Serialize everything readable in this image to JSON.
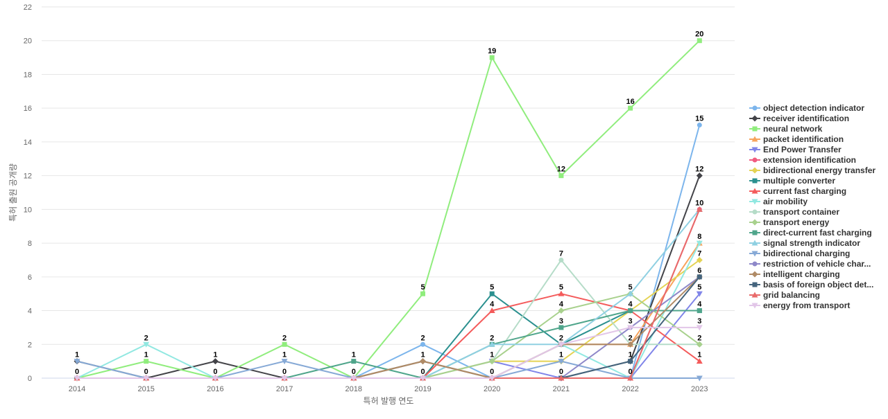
{
  "chart_data": {
    "type": "line",
    "xlabel": "특허 발행 연도",
    "ylabel": "특허 출원 공개량",
    "ylim": [
      0,
      22
    ],
    "yticks": [
      0,
      2,
      4,
      6,
      8,
      10,
      12,
      14,
      16,
      18,
      20,
      22
    ],
    "categories": [
      "2014",
      "2015",
      "2016",
      "2017",
      "2018",
      "2019",
      "2020",
      "2021",
      "2022",
      "2023"
    ],
    "grid": true,
    "legend_position": "right",
    "data_labels_for_series": "neural network",
    "series": [
      {
        "name": "object detection indicator",
        "color": "#7cb5ec",
        "marker": "circle",
        "values": [
          0,
          0,
          0,
          0,
          0,
          2,
          0,
          0,
          0,
          15
        ]
      },
      {
        "name": "receiver identification",
        "color": "#434348",
        "marker": "diamond",
        "values": [
          1,
          0,
          1,
          0,
          0,
          1,
          0,
          0,
          1,
          12
        ]
      },
      {
        "name": "neural network",
        "color": "#90ed7d",
        "marker": "square",
        "values": [
          0,
          1,
          0,
          2,
          0,
          5,
          19,
          12,
          16,
          20
        ]
      },
      {
        "name": "packet identification",
        "color": "#f7a35c",
        "marker": "triangle",
        "values": [
          0,
          0,
          0,
          0,
          0,
          0,
          0,
          2,
          2,
          8
        ]
      },
      {
        "name": "End Power Transfer",
        "color": "#8085e9",
        "marker": "triangle-down",
        "values": [
          0,
          0,
          0,
          0,
          0,
          0,
          1,
          0,
          0,
          5
        ]
      },
      {
        "name": "extension identification",
        "color": "#f15c80",
        "marker": "circle",
        "values": [
          0,
          0,
          0,
          0,
          0,
          0,
          0,
          0,
          0,
          10
        ]
      },
      {
        "name": "bidirectional energy transfer",
        "color": "#e4d354",
        "marker": "diamond",
        "values": [
          0,
          0,
          0,
          0,
          0,
          0,
          1,
          1,
          4,
          7
        ]
      },
      {
        "name": "multiple converter",
        "color": "#2b908f",
        "marker": "square",
        "values": [
          0,
          0,
          0,
          0,
          0,
          0,
          5,
          2,
          4,
          4
        ]
      },
      {
        "name": "current fast charging",
        "color": "#f45b5b",
        "marker": "triangle",
        "values": [
          0,
          0,
          0,
          0,
          0,
          0,
          4,
          5,
          4,
          1
        ]
      },
      {
        "name": "air mobility",
        "color": "#91e8e1",
        "marker": "triangle-down",
        "values": [
          0,
          2,
          0,
          0,
          0,
          0,
          0,
          2,
          0,
          8
        ]
      },
      {
        "name": "transport container",
        "color": "#b5dcc8",
        "marker": "circle",
        "values": [
          0,
          0,
          0,
          0,
          0,
          0,
          1,
          7,
          2,
          2
        ]
      },
      {
        "name": "transport energy",
        "color": "#a8d18d",
        "marker": "diamond",
        "values": [
          0,
          0,
          0,
          0,
          0,
          0,
          1,
          4,
          5,
          2
        ]
      },
      {
        "name": "direct-current fast charging",
        "color": "#4fa58b",
        "marker": "square",
        "values": [
          0,
          0,
          0,
          0,
          1,
          0,
          2,
          3,
          4,
          4
        ]
      },
      {
        "name": "signal strength indicator",
        "color": "#8fd0e2",
        "marker": "triangle",
        "values": [
          0,
          0,
          0,
          0,
          0,
          0,
          2,
          2,
          5,
          10
        ]
      },
      {
        "name": "bidirectional charging",
        "color": "#86a9d6",
        "marker": "triangle-down",
        "values": [
          1,
          0,
          0,
          1,
          0,
          0,
          0,
          1,
          0,
          0
        ]
      },
      {
        "name": "restriction of vehicle char...",
        "color": "#8e88c9",
        "marker": "circle",
        "values": [
          0,
          0,
          0,
          0,
          0,
          0,
          0,
          0,
          3,
          6
        ]
      },
      {
        "name": "intelligent charging",
        "color": "#b08b66",
        "marker": "diamond",
        "values": [
          0,
          0,
          0,
          0,
          0,
          1,
          0,
          2,
          2,
          6
        ]
      },
      {
        "name": "basis of foreign object det...",
        "color": "#44647d",
        "marker": "square",
        "values": [
          0,
          0,
          0,
          0,
          0,
          0,
          0,
          0,
          1,
          6
        ]
      },
      {
        "name": "grid balancing",
        "color": "#e86a6a",
        "marker": "triangle",
        "values": [
          0,
          0,
          0,
          0,
          0,
          0,
          0,
          0,
          0,
          10
        ]
      },
      {
        "name": "energy from transport",
        "color": "#e2c6e8",
        "marker": "triangle-down",
        "values": [
          0,
          0,
          0,
          0,
          0,
          0,
          0,
          2,
          3,
          3
        ]
      }
    ],
    "annotations": [
      {
        "x": "2014",
        "labels": [
          "1",
          "0"
        ]
      },
      {
        "x": "2015",
        "labels": [
          "2",
          "1",
          "0"
        ]
      },
      {
        "x": "2016",
        "labels": [
          "1",
          "0"
        ]
      },
      {
        "x": "2017",
        "labels": [
          "2",
          "1",
          "0"
        ]
      },
      {
        "x": "2018",
        "labels": [
          "1",
          "0"
        ]
      },
      {
        "x": "2019",
        "labels": [
          "5",
          "2",
          "1",
          "0"
        ]
      },
      {
        "x": "2020",
        "labels": [
          "19",
          "5",
          "4",
          "2",
          "1",
          "0"
        ]
      },
      {
        "x": "2021",
        "labels": [
          "12",
          "7",
          "5",
          "4",
          "3",
          "2",
          "1",
          "0"
        ]
      },
      {
        "x": "2022",
        "labels": [
          "16",
          "5",
          "4",
          "3",
          "2",
          "1",
          "0"
        ]
      },
      {
        "x": "2023",
        "labels": [
          "20",
          "15",
          "12",
          "10",
          "8",
          "7",
          "6",
          "5",
          "4",
          "3",
          "2",
          "1"
        ]
      }
    ]
  }
}
